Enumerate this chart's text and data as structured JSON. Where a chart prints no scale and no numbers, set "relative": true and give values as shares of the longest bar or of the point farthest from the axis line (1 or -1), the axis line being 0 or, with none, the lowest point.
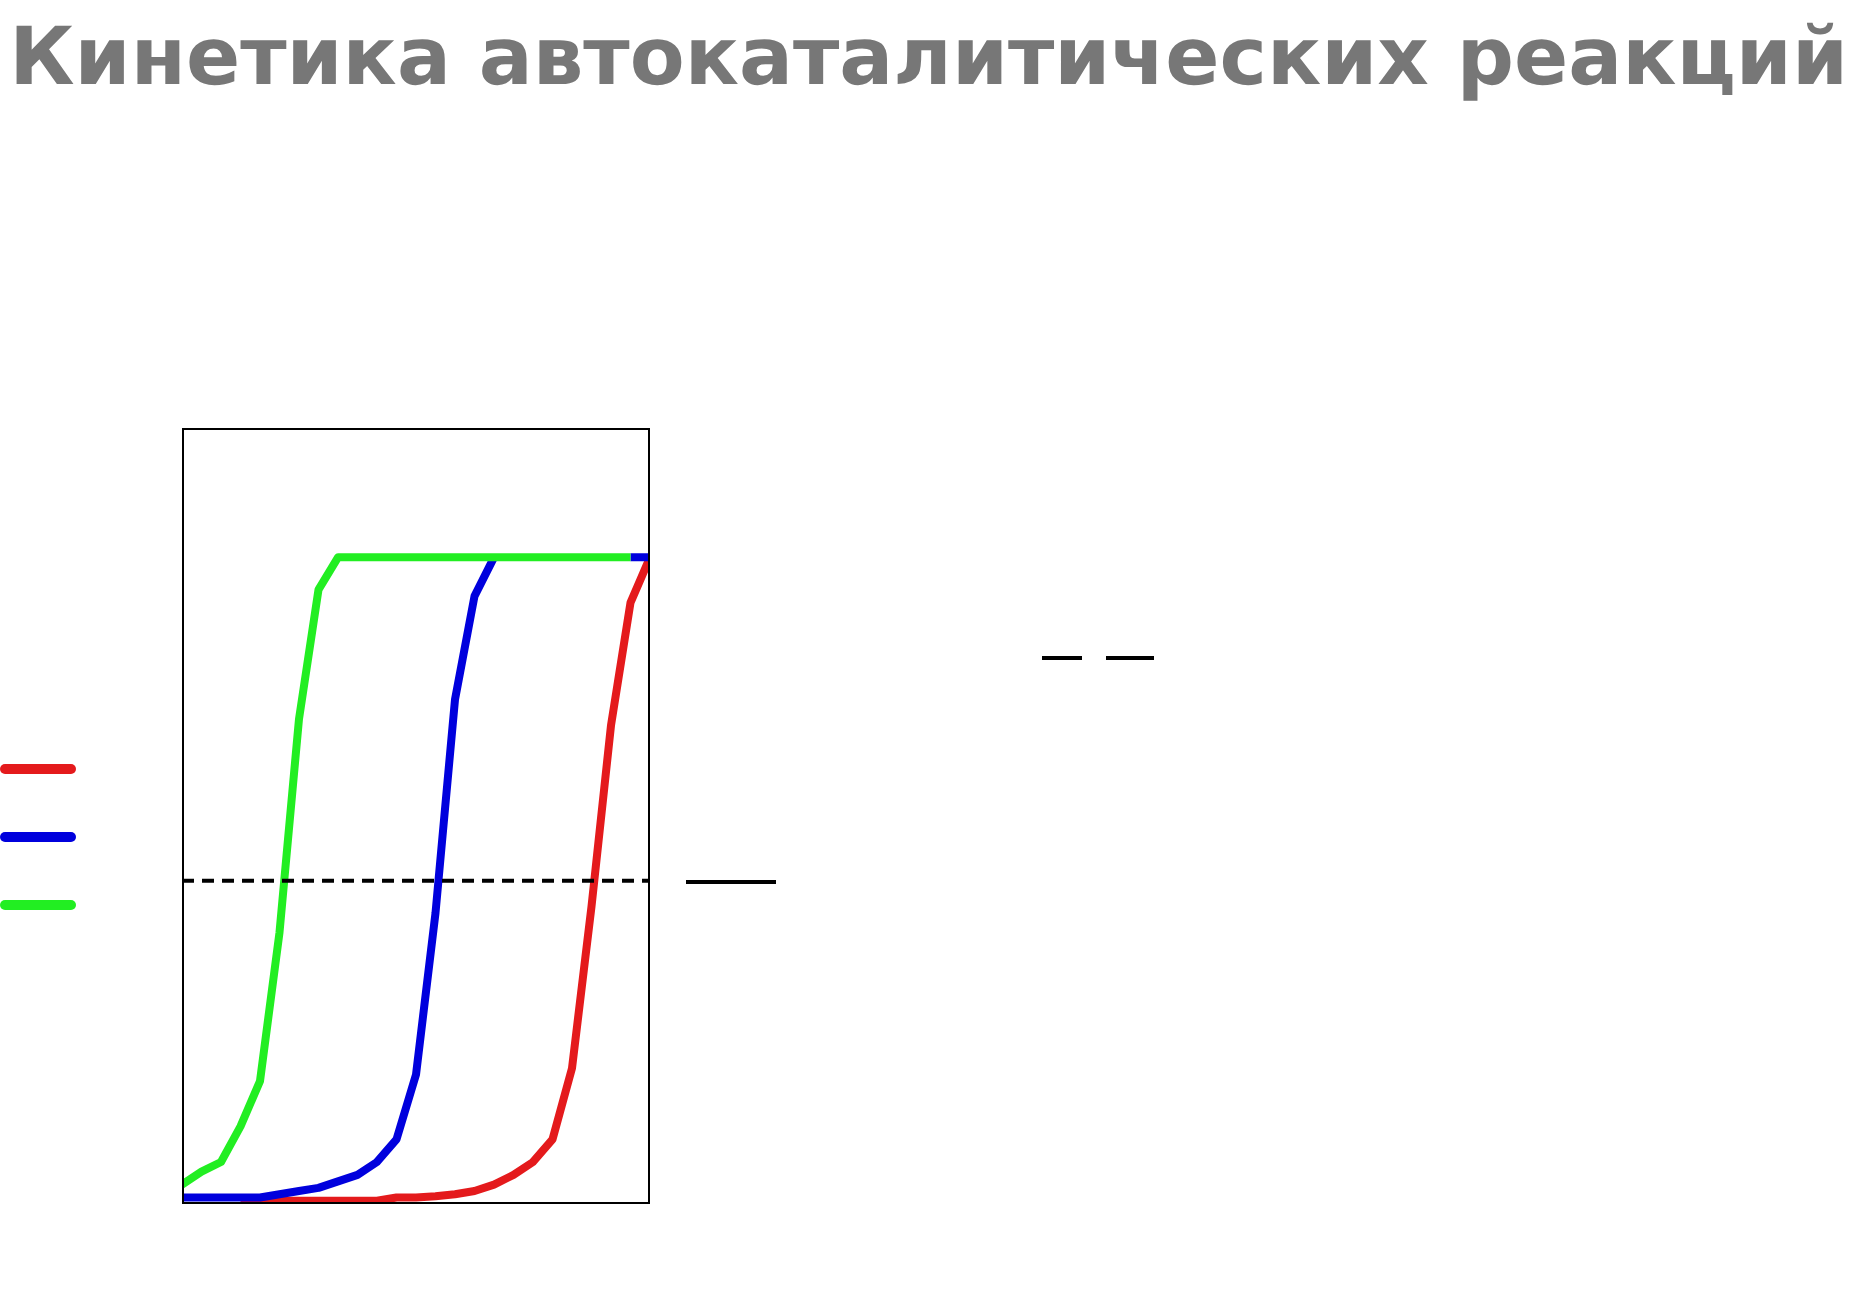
{
  "chart_data": {
    "type": "line",
    "title": "Кинетика автокаталитических реакций",
    "relative": true,
    "categories": [
      null,
      null,
      null,
      null,
      null,
      null,
      null,
      null,
      null,
      null,
      null,
      null,
      null,
      null,
      null,
      null,
      null,
      null,
      null,
      null,
      null,
      null,
      null,
      null,
      null
    ],
    "series": [
      {
        "color": "#e41a1c",
        "values": [
          null,
          null,
          null,
          0.005,
          0.005,
          0.005,
          0.005,
          0.005,
          0.005,
          0.005,
          0.005,
          0.01,
          0.01,
          0.012,
          0.015,
          0.02,
          0.03,
          0.045,
          0.065,
          0.1,
          0.21,
          0.46,
          0.74,
          0.93,
          1.0
        ]
      },
      {
        "color": "#0000dd",
        "values": [
          0.01,
          0.01,
          0.01,
          0.01,
          0.01,
          0.015,
          0.02,
          0.025,
          0.035,
          0.045,
          0.065,
          0.1,
          0.2,
          0.45,
          0.78,
          0.94,
          1.0,
          null,
          null,
          null,
          null,
          null,
          null,
          1.0,
          1.0
        ]
      },
      {
        "color": "#22ee22",
        "values": [
          0.03,
          0.05,
          0.065,
          0.12,
          0.19,
          0.42,
          0.75,
          0.95,
          1.0,
          1.0,
          1.0,
          1.0,
          1.0,
          1.0,
          1.0,
          1.0,
          1.0,
          1.0,
          1.0,
          1.0,
          1.0,
          1.0,
          1.0,
          1.0,
          null
        ]
      }
    ],
    "ref_lines": [
      {
        "axis": "y",
        "value": 0.5,
        "color": "#000000",
        "line_style": "dashed"
      }
    ],
    "marker": "none",
    "line_style": "solid",
    "legend": false
  }
}
